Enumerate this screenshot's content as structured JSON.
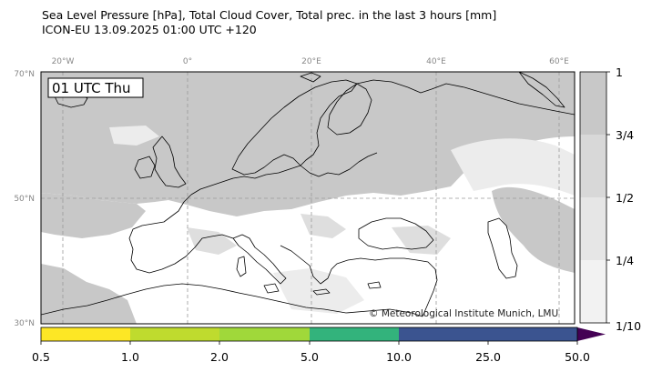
{
  "header": {
    "title_line1": "Sea Level Pressure [hPa], Total Cloud Cover, Total prec. in the last 3 hours [mm]",
    "title_line2": "ICON-EU 13.09.2025 01:00 UTC +120"
  },
  "map": {
    "time_label": "01 UTC Thu",
    "copyright": "© Meteorological Institute Munich, LMU",
    "lon_labels": [
      "20°W",
      "0°",
      "20°E",
      "40°E",
      "60°E"
    ],
    "lat_labels": [
      "70°N",
      "50°N",
      "30°N"
    ],
    "colors": {
      "ocean": "#ffffff",
      "cloud_dense": "#c8c8c8",
      "cloud_mid": "#dedede",
      "cloud_light": "#ececec",
      "coast": "#000000",
      "grid": "#9a9a9a"
    }
  },
  "cloud_colorbar": {
    "labels": [
      "1",
      "3/4",
      "1/2",
      "1/4",
      "1/10"
    ],
    "colors": [
      "#c8c8c8",
      "#d8d8d8",
      "#e6e6e6",
      "#f2f2f2"
    ]
  },
  "precip_colorbar": {
    "labels": [
      "0.5",
      "1.0",
      "2.0",
      "5.0",
      "10.0",
      "25.0",
      "50.0"
    ],
    "colors": [
      "#fde725",
      "#dfe12a",
      "#bfdb2e",
      "#a0d83a",
      "#33b37c",
      "#3b5490",
      "#440154"
    ]
  }
}
